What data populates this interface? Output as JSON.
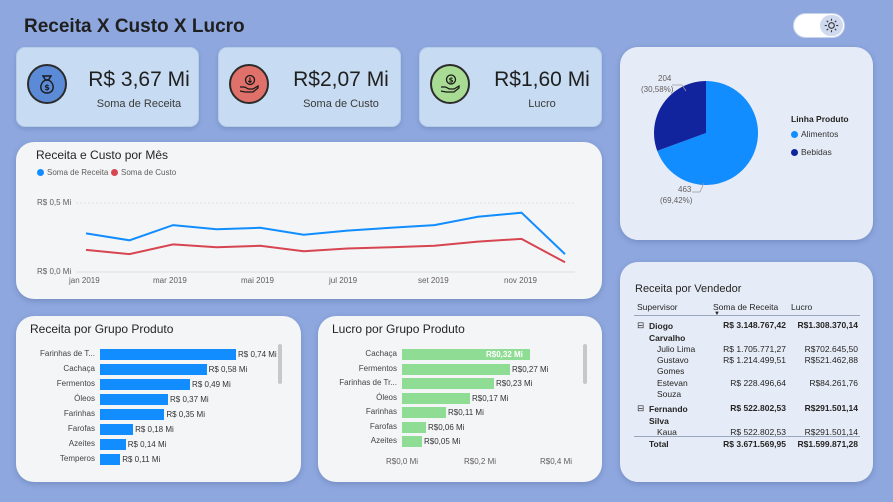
{
  "header": {
    "title": "Receita X Custo X Lucro"
  },
  "kpis": [
    {
      "value": "R$ 3,67 Mi",
      "label": "Soma de Receita",
      "icon": "money-bag-icon",
      "color": "#5b8bd6"
    },
    {
      "value": "R$2,07 Mi",
      "label": "Soma de Custo",
      "icon": "cost-hand-icon",
      "color": "#e0706a"
    },
    {
      "value": "R$1,60 Mi",
      "label": "Lucro",
      "icon": "profit-hand-icon",
      "color": "#a8dc94"
    }
  ],
  "pie": {
    "legend_title": "Linha Produto",
    "slices": [
      {
        "name": "Alimentos",
        "value": 463,
        "pct": "(69,42%)",
        "color": "#118dff"
      },
      {
        "name": "Bebidas",
        "value": 204,
        "pct": "(30,58%)",
        "color": "#12239e"
      }
    ]
  },
  "line_chart": {
    "title": "Receita e Custo por Mês",
    "legend": [
      {
        "name": "Soma de Receita",
        "color": "#118dff"
      },
      {
        "name": "Soma de Custo",
        "color": "#d64550"
      }
    ],
    "y_ticks": [
      "R$ 0,5 Mi",
      "R$ 0,0 Mi"
    ],
    "x_ticks": [
      "jan 2019",
      "mar 2019",
      "mai 2019",
      "jul 2019",
      "set 2019",
      "nov 2019"
    ]
  },
  "bar_receita": {
    "title": "Receita por Grupo Produto",
    "color": "#118dff",
    "rows": [
      {
        "label": "Farinhas de T...",
        "value": "R$ 0,74 Mi"
      },
      {
        "label": "Cachaça",
        "value": "R$ 0,58 Mi"
      },
      {
        "label": "Fermentos",
        "value": "R$ 0,49 Mi"
      },
      {
        "label": "Óleos",
        "value": "R$ 0,37 Mi"
      },
      {
        "label": "Farinhas",
        "value": "R$ 0,35 Mi"
      },
      {
        "label": "Farofas",
        "value": "R$ 0,18 Mi"
      },
      {
        "label": "Azeites",
        "value": "R$ 0,14 Mi"
      },
      {
        "label": "Temperos",
        "value": "R$ 0,11 Mi"
      }
    ]
  },
  "bar_lucro": {
    "title": "Lucro por Grupo Produto",
    "color": "#8fdc94",
    "rows": [
      {
        "label": "Cachaça",
        "value": "R$0,32 Mi"
      },
      {
        "label": "Fermentos",
        "value": "R$0,27 Mi"
      },
      {
        "label": "Farinhas de Tr...",
        "value": "R$0,23 Mi"
      },
      {
        "label": "Óleos",
        "value": "R$0,17 Mi"
      },
      {
        "label": "Farinhas",
        "value": "R$0,11 Mi"
      },
      {
        "label": "Farofas",
        "value": "R$0,06 Mi"
      },
      {
        "label": "Azeites",
        "value": "R$0,05 Mi"
      }
    ],
    "x_ticks": [
      "R$0,0 Mi",
      "R$0,2 Mi",
      "R$0,4 Mi"
    ]
  },
  "chart_data": [
    {
      "type": "line",
      "title": "Receita e Custo por Mês",
      "x": [
        "jan 2019",
        "fev 2019",
        "mar 2019",
        "abr 2019",
        "mai 2019",
        "jun 2019",
        "jul 2019",
        "ago 2019",
        "set 2019",
        "out 2019",
        "nov 2019",
        "dez 2019"
      ],
      "series": [
        {
          "name": "Soma de Receita",
          "values": [
            0.28,
            0.23,
            0.34,
            0.31,
            0.32,
            0.27,
            0.3,
            0.32,
            0.34,
            0.4,
            0.43,
            0.13
          ]
        },
        {
          "name": "Soma de Custo",
          "values": [
            0.16,
            0.13,
            0.2,
            0.18,
            0.19,
            0.15,
            0.17,
            0.18,
            0.19,
            0.22,
            0.24,
            0.07
          ]
        }
      ],
      "ylim": [
        0,
        0.5
      ]
    },
    {
      "type": "bar",
      "title": "Receita por Grupo Produto",
      "categories": [
        "Farinhas de T...",
        "Cachaça",
        "Fermentos",
        "Óleos",
        "Farinhas",
        "Farofas",
        "Azeites",
        "Temperos"
      ],
      "values": [
        0.74,
        0.58,
        0.49,
        0.37,
        0.35,
        0.18,
        0.14,
        0.11
      ]
    },
    {
      "type": "bar",
      "title": "Lucro por Grupo Produto",
      "categories": [
        "Cachaça",
        "Fermentos",
        "Farinhas de Tr...",
        "Óleos",
        "Farinhas",
        "Farofas",
        "Azeites"
      ],
      "values": [
        0.32,
        0.27,
        0.23,
        0.17,
        0.11,
        0.06,
        0.05
      ],
      "xlim": [
        0,
        0.4
      ]
    },
    {
      "type": "pie",
      "categories": [
        "Alimentos",
        "Bebidas"
      ],
      "values": [
        463,
        204
      ]
    }
  ],
  "table": {
    "title": "Receita por Vendedor",
    "headers": [
      "Supervisor",
      "Soma de Receita",
      "Lucro"
    ],
    "rows": [
      {
        "name": "Diogo Carvalho",
        "receita": "R$ 3.148.767,42",
        "lucro": "R$1.308.370,14",
        "level": 0
      },
      {
        "name": "Julio Lima",
        "receita": "R$ 1.705.771,27",
        "lucro": "R$702.645,50",
        "level": 1
      },
      {
        "name": "Gustavo Gomes",
        "receita": "R$ 1.214.499,51",
        "lucro": "R$521.462,88",
        "level": 1
      },
      {
        "name": "Estevan Souza",
        "receita": "R$ 228.496,64",
        "lucro": "R$84.261,76",
        "level": 1
      },
      {
        "name": "Fernando Silva",
        "receita": "R$ 522.802,53",
        "lucro": "R$291.501,14",
        "level": 0
      },
      {
        "name": "Kaua",
        "receita": "R$ 522.802,53",
        "lucro": "R$291.501,14",
        "level": 1
      }
    ],
    "total": {
      "name": "Total",
      "receita": "R$ 3.671.569,95",
      "lucro": "R$1.599.871,28"
    }
  }
}
